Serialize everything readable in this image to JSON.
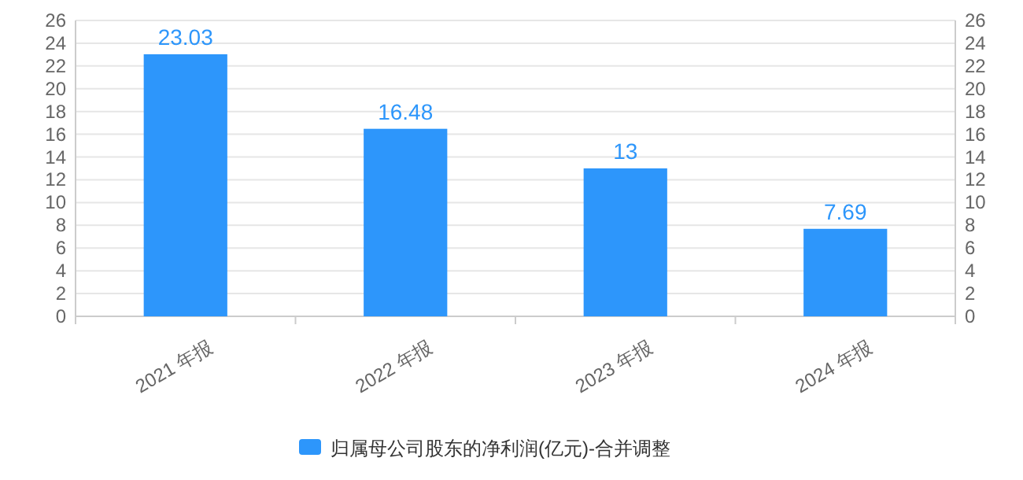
{
  "chart_data": {
    "type": "bar",
    "categories": [
      "2021 年报",
      "2022 年报",
      "2023 年报",
      "2024 年报"
    ],
    "series": [
      {
        "name": "归属母公司股东的净利润(亿元)-合并调整",
        "color": "#2d96fb",
        "values": [
          23.03,
          16.48,
          13,
          7.69
        ]
      }
    ],
    "ylim": [
      0,
      26
    ],
    "yticks": [
      0,
      2,
      4,
      6,
      8,
      10,
      12,
      14,
      16,
      18,
      20,
      22,
      24,
      26
    ],
    "y2lim": [
      0,
      26
    ],
    "y2ticks": [
      0,
      2,
      4,
      6,
      8,
      10,
      12,
      14,
      16,
      18,
      20,
      22,
      24,
      26
    ],
    "grid": "y",
    "data_labels": true,
    "legend": "bottom"
  }
}
